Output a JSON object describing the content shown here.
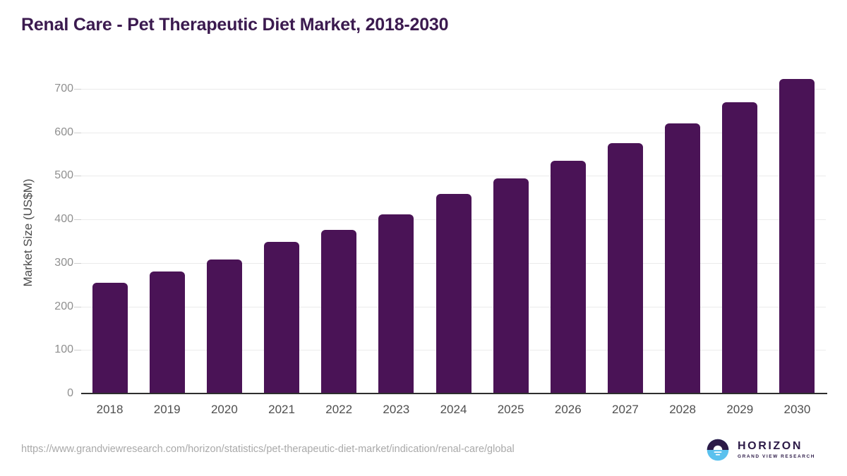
{
  "chart_data": {
    "type": "bar",
    "title": "Renal Care - Pet Therapeutic Diet Market, 2018-2030",
    "categories": [
      "2018",
      "2019",
      "2020",
      "2021",
      "2022",
      "2023",
      "2024",
      "2025",
      "2026",
      "2027",
      "2028",
      "2029",
      "2030"
    ],
    "values": [
      255,
      281,
      308,
      348,
      376,
      411,
      459,
      495,
      534,
      575,
      620,
      669,
      722
    ],
    "xlabel": "",
    "ylabel": "Market Size (US$M)",
    "ylim": [
      0,
      700
    ],
    "ytick_interval": 100,
    "yticks": [
      0,
      100,
      200,
      300,
      400,
      500,
      600,
      700
    ],
    "grid": "horizontal",
    "legend": "none"
  },
  "colors": {
    "bar": "#4a1356",
    "title": "#3b1a4f",
    "logo_purple": "#2c1a47",
    "logo_blue": "#5bc1ee",
    "logo_white": "#ffffff"
  },
  "footer": {
    "source_url": "https://www.grandviewresearch.com/horizon/statistics/pet-therapeutic-diet-market/indication/renal-care/global",
    "logo": {
      "title": "HORIZON",
      "subtitle": "GRAND VIEW RESEARCH"
    }
  }
}
